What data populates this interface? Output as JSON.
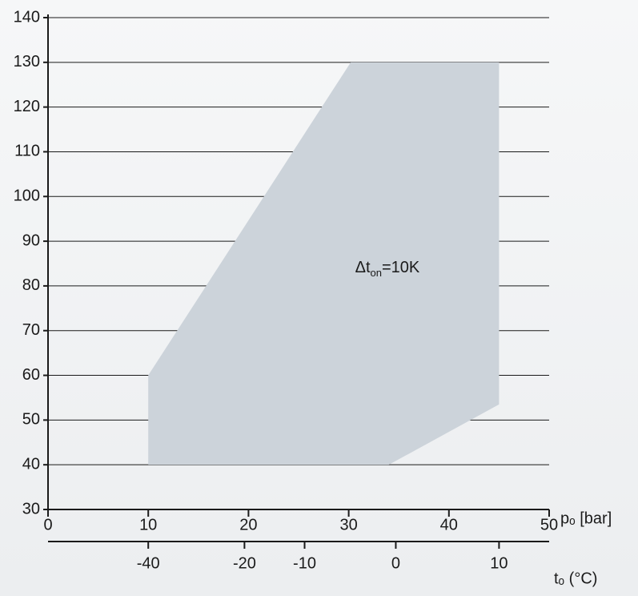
{
  "chart_data": {
    "type": "area",
    "title": "",
    "xlabel": "pₒ [bar]",
    "ylabel": "",
    "xlim": [
      0,
      50
    ],
    "ylim": [
      30,
      140
    ],
    "x_ticks": [
      0,
      10,
      20,
      30,
      40,
      50
    ],
    "y_ticks": [
      30,
      40,
      50,
      60,
      70,
      80,
      90,
      100,
      110,
      120,
      130,
      140
    ],
    "grid": "horizontal",
    "secondary_x_axis": {
      "label": "tₒ (°C)",
      "ticks": [
        {
          "label": "-40",
          "pressure": 10
        },
        {
          "label": "-20",
          "pressure": 19.6
        },
        {
          "label": "-10",
          "pressure": 25.6
        },
        {
          "label": "0",
          "pressure": 34.7
        },
        {
          "label": "10",
          "pressure": 45
        }
      ]
    },
    "envelope": {
      "points": [
        {
          "x": 10,
          "y": 40
        },
        {
          "x": 10,
          "y": 60
        },
        {
          "x": 30.2,
          "y": 130
        },
        {
          "x": 45,
          "y": 130
        },
        {
          "x": 45,
          "y": 53.5
        },
        {
          "x": 34,
          "y": 40
        }
      ],
      "color": "#ccd3da"
    },
    "annotation": {
      "base": "Δt",
      "sub": "on",
      "rest": "=10K",
      "x": 30,
      "y": 83
    }
  }
}
